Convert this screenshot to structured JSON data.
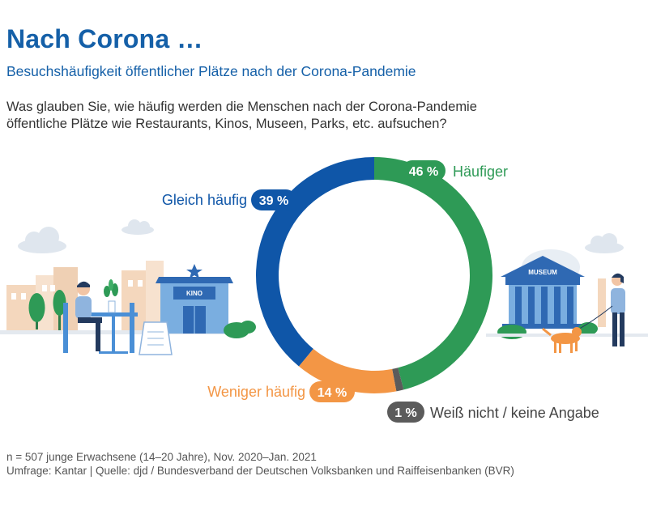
{
  "header": {
    "title": "Nach Corona …",
    "subtitle": "Besuchshäufigkeit öffentlicher Plätze nach der Corona-Pandemie"
  },
  "question": {
    "line1": "Was glauben Sie, wie häufig werden die Menschen nach der Corona-Pandemie",
    "line2": "öffentliche Plätze wie Restaurants, Kinos, Museen, Parks, etc. aufsuchen?"
  },
  "chart_data": {
    "type": "pie",
    "donut": true,
    "slices": [
      {
        "label": "Häufiger",
        "value": 46,
        "value_text": "46 %",
        "color": "#2e9a56"
      },
      {
        "label": "Weiß nicht / keine Angabe",
        "value": 1,
        "value_text": "1 %",
        "color": "#5b5b5b"
      },
      {
        "label": "Weniger häufig",
        "value": 14,
        "value_text": "14 %",
        "color": "#f39645"
      },
      {
        "label": "Gleich häufig",
        "value": 39,
        "value_text": "39 %",
        "color": "#0f56a8"
      }
    ]
  },
  "illustration": {
    "kino_sign": "KINO",
    "museum_sign": "MUSEUM"
  },
  "footnote": {
    "line1": "n = 507 junge Erwachsene (14–20 Jahre), Nov. 2020–Jan. 2021",
    "line2": "Umfrage: Kantar | Quelle: djd / Bundesverband der Deutschen Volksbanken und Raiffeisenbanken (BVR)"
  }
}
